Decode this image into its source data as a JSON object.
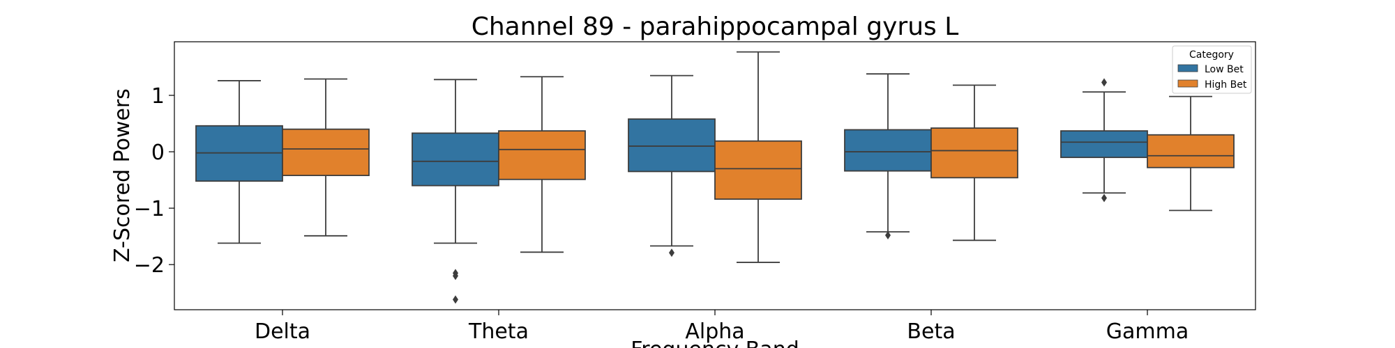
{
  "chart_data": {
    "type": "boxplot",
    "title": "Channel 89 - parahippocampal gyrus L",
    "xlabel": "Frequency Band",
    "ylabel": "Z-Scored Powers",
    "ylim": [
      -2.8,
      1.95
    ],
    "yticks": [
      1,
      0,
      -1,
      -2
    ],
    "ytick_labels": [
      "1",
      "0",
      "−1",
      "−2"
    ],
    "grid": false,
    "legend": {
      "title": "Category",
      "placement": "top-right"
    },
    "categories": [
      "Delta",
      "Theta",
      "Alpha",
      "Beta",
      "Gamma"
    ],
    "series": [
      {
        "name": "Low Bet",
        "color": "#3274a1",
        "boxes": [
          {
            "whislo": -1.62,
            "q1": -0.52,
            "med": -0.02,
            "q3": 0.46,
            "whishi": 1.26,
            "fliers": []
          },
          {
            "whislo": -1.62,
            "q1": -0.6,
            "med": -0.17,
            "q3": 0.33,
            "whishi": 1.28,
            "fliers": [
              -2.15,
              -2.2,
              -2.62
            ]
          },
          {
            "whislo": -1.67,
            "q1": -0.35,
            "med": 0.1,
            "q3": 0.58,
            "whishi": 1.35,
            "fliers": [
              -1.79
            ]
          },
          {
            "whislo": -1.42,
            "q1": -0.34,
            "med": 0.0,
            "q3": 0.39,
            "whishi": 1.38,
            "fliers": [
              -1.48
            ]
          },
          {
            "whislo": -0.73,
            "q1": -0.1,
            "med": 0.17,
            "q3": 0.37,
            "whishi": 1.06,
            "fliers": [
              1.23,
              -0.82
            ]
          }
        ]
      },
      {
        "name": "High Bet",
        "color": "#e1812c",
        "boxes": [
          {
            "whislo": -1.49,
            "q1": -0.42,
            "med": 0.05,
            "q3": 0.4,
            "whishi": 1.29,
            "fliers": []
          },
          {
            "whislo": -1.78,
            "q1": -0.49,
            "med": 0.04,
            "q3": 0.37,
            "whishi": 1.33,
            "fliers": []
          },
          {
            "whislo": -1.96,
            "q1": -0.84,
            "med": -0.3,
            "q3": 0.19,
            "whishi": 1.77,
            "fliers": []
          },
          {
            "whislo": -1.57,
            "q1": -0.46,
            "med": 0.02,
            "q3": 0.42,
            "whishi": 1.18,
            "fliers": []
          },
          {
            "whislo": -1.04,
            "q1": -0.28,
            "med": -0.07,
            "q3": 0.3,
            "whishi": 0.98,
            "fliers": []
          }
        ]
      }
    ]
  }
}
